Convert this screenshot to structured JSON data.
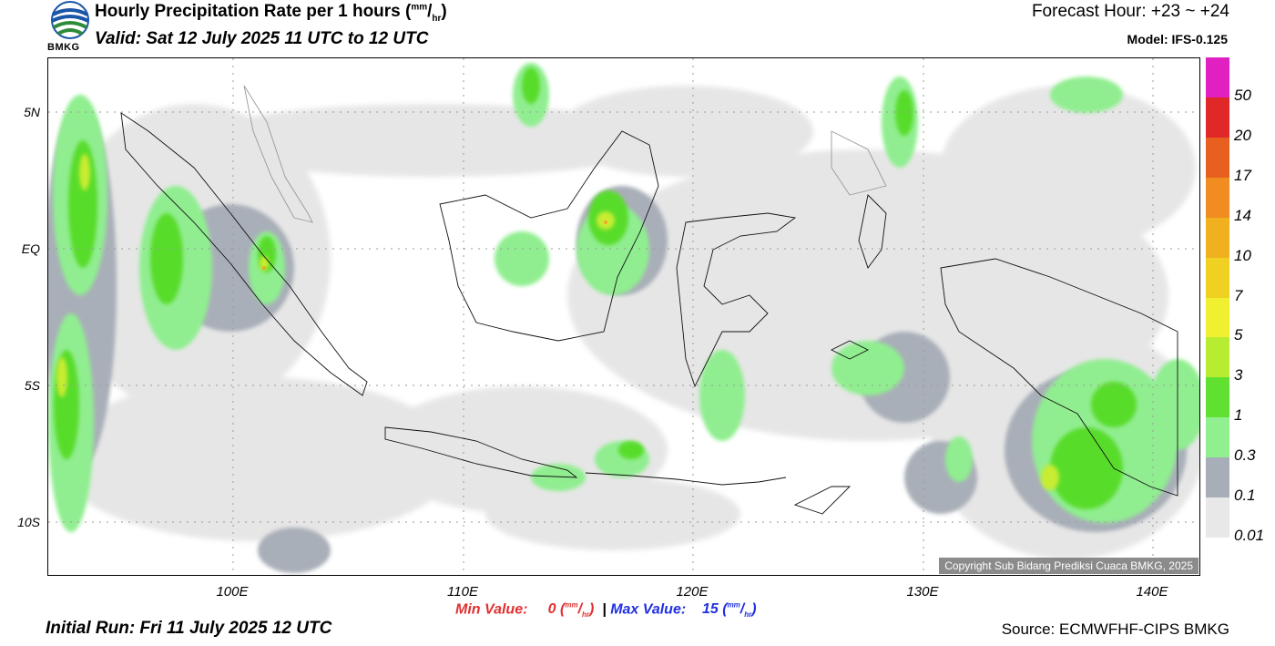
{
  "header": {
    "title_main": "Hourly Precipitation Rate per 1 hours (",
    "title_unit_num": "mm",
    "title_slash": "/",
    "title_unit_den": "hr",
    "title_close": ")",
    "valid": "Valid: Sat 12 July 2025 11 UTC to 12 UTC",
    "forecast_hour": "Forecast Hour: +23 ~ +24",
    "model": "Model: IFS-0.125",
    "logo_text": "BMKG"
  },
  "map": {
    "lat_labels": [
      "5N",
      "EQ",
      "5S",
      "10S"
    ],
    "lon_labels": [
      "100E",
      "110E",
      "120E",
      "130E",
      "140E"
    ],
    "copyright": "Copyright Sub Bidang Prediksi Cuaca BMKG, 2025"
  },
  "legend": {
    "labels": [
      "50",
      "20",
      "17",
      "14",
      "10",
      "7",
      "5",
      "3",
      "1",
      "0.3",
      "0.1",
      "0.01"
    ],
    "colors": [
      "#e020c0",
      "#e02828",
      "#e86020",
      "#f08c20",
      "#f0b020",
      "#f0d020",
      "#f0f030",
      "#b8ec30",
      "#60e030",
      "#90f090",
      "#a8aeb8",
      "#e8e8e8"
    ]
  },
  "footer": {
    "min_label": "Min Value:",
    "min_value": "0",
    "max_label": "Max Value:",
    "max_value": "15",
    "unit_num": "mm",
    "unit_den": "hr",
    "separator": "|",
    "initial_run": "Initial Run: Fri 11 July 2025 12 UTC",
    "source": "Source: ECMWFHF-CIPS BMKG"
  }
}
